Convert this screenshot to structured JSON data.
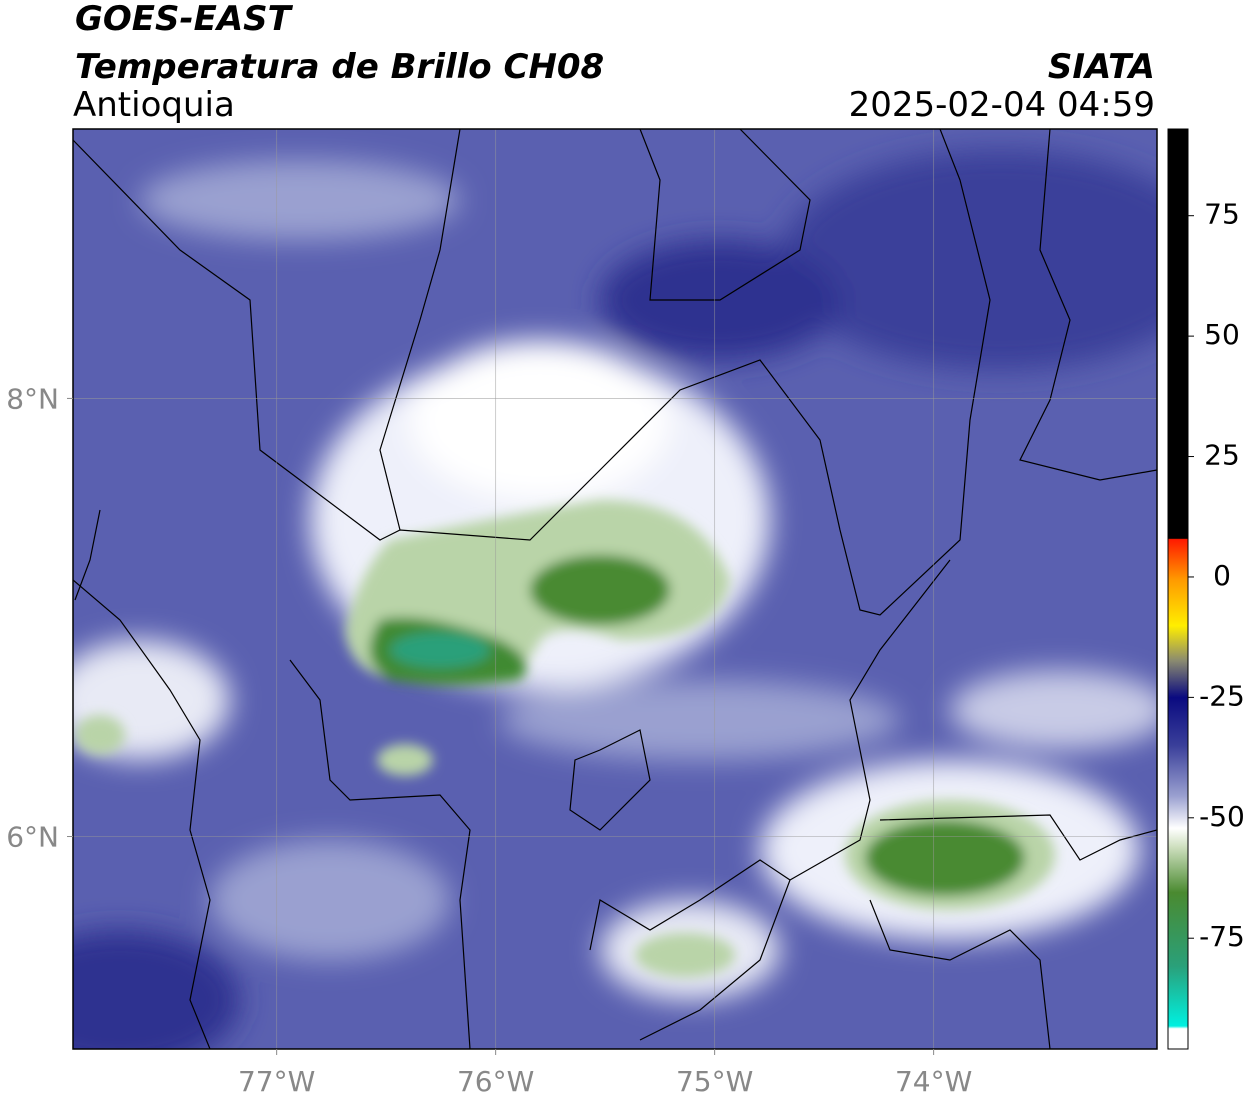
{
  "header": {
    "title": "GOES-EAST",
    "subtitle": "Temperatura de Brillo CH08",
    "region": "Antioquia",
    "source": "SIATA",
    "timestamp": "2025-02-04 04:59"
  },
  "map": {
    "xlim": [
      -77.93,
      -72.98
    ],
    "ylim": [
      5.03,
      9.23
    ],
    "xticks": [
      {
        "value": -77,
        "label": "77°W"
      },
      {
        "value": -76,
        "label": "76°W"
      },
      {
        "value": -75,
        "label": "75°W"
      },
      {
        "value": -74,
        "label": "74°W"
      }
    ],
    "yticks": [
      {
        "value": 6,
        "label": "6°N"
      },
      {
        "value": 8,
        "label": "8°N"
      }
    ],
    "grid": true
  },
  "colorbar": {
    "clim": [
      -98,
      93
    ],
    "ticks": [
      -75,
      -50,
      -25,
      0,
      25,
      50,
      75
    ]
  }
}
